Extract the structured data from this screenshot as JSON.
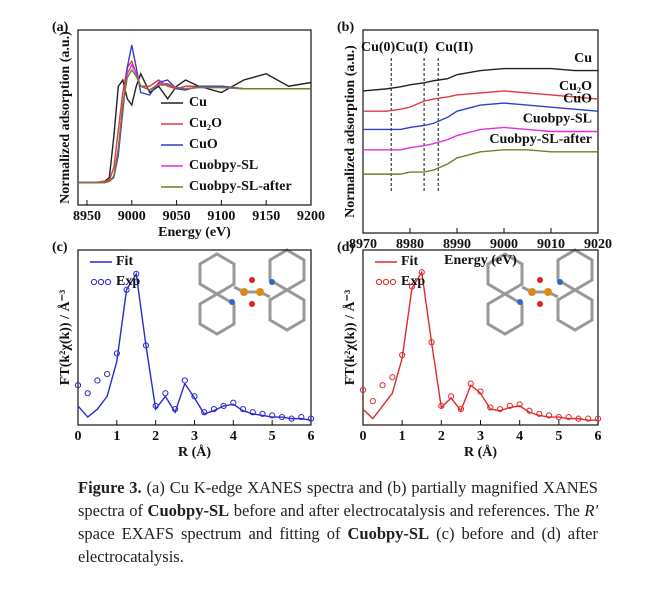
{
  "chart_data": [
    {
      "type": "line",
      "label": "(a)",
      "xlabel": "Energy (eV)",
      "ylabel": "Normalized adsorption (a.u.)",
      "x": [
        8940,
        8960,
        8970,
        8975,
        8980,
        8985,
        8990,
        8995,
        9000,
        9005,
        9010,
        9020,
        9030,
        9040,
        9050,
        9060,
        9075,
        9100,
        9125,
        9150,
        9175,
        9200
      ],
      "xlim": [
        8940,
        9200
      ],
      "xticks": [
        8950,
        9000,
        9050,
        9100,
        9150,
        9200
      ],
      "ylim": [
        0,
        1.4
      ],
      "legend": "lower-right",
      "series": [
        {
          "name": "Cu",
          "color": "#222222",
          "values": [
            0.18,
            0.18,
            0.19,
            0.22,
            0.55,
            0.95,
            1.0,
            0.85,
            0.8,
            0.95,
            1.05,
            0.9,
            0.95,
            0.85,
            0.95,
            1.0,
            0.95,
            0.9,
            1.0,
            1.05,
            0.95,
            0.98
          ]
        },
        {
          "name": "Cu₂O",
          "color": "#e0393e",
          "values": [
            0.18,
            0.18,
            0.19,
            0.2,
            0.3,
            0.6,
            0.9,
            1.1,
            1.15,
            1.05,
            0.95,
            0.95,
            1.0,
            0.95,
            0.93,
            0.95,
            0.95,
            0.95,
            0.93,
            0.93,
            0.93,
            0.93
          ]
        },
        {
          "name": "CuO",
          "color": "#2f3fc9",
          "values": [
            0.18,
            0.18,
            0.18,
            0.19,
            0.22,
            0.4,
            0.75,
            1.1,
            1.28,
            1.1,
            0.9,
            0.88,
            0.98,
            1.0,
            0.93,
            0.92,
            0.95,
            0.95,
            0.93,
            0.93,
            0.93,
            0.93
          ]
        },
        {
          "name": "Cuobpy-SL",
          "color": "#e22fe0",
          "values": [
            0.18,
            0.18,
            0.18,
            0.19,
            0.23,
            0.45,
            0.8,
            1.05,
            1.12,
            1.05,
            0.95,
            0.92,
            0.97,
            0.97,
            0.94,
            0.93,
            0.94,
            0.94,
            0.93,
            0.93,
            0.93,
            0.93
          ]
        },
        {
          "name": "Cuobpy-SL-after",
          "color": "#7a7a2a",
          "values": [
            0.18,
            0.18,
            0.18,
            0.19,
            0.23,
            0.45,
            0.8,
            1.02,
            1.08,
            1.03,
            0.95,
            0.92,
            0.96,
            0.96,
            0.94,
            0.93,
            0.94,
            0.94,
            0.93,
            0.93,
            0.93,
            0.93
          ]
        }
      ]
    },
    {
      "type": "line",
      "label": "(b)",
      "xlabel": "Energy (eV)",
      "ylabel": "Normalized adsorption (a.u.)",
      "x": [
        8970,
        8975,
        8978,
        8980,
        8983,
        8985,
        8988,
        8990,
        8995,
        9000,
        9005,
        9010,
        9015,
        9020
      ],
      "xlim": [
        8970,
        9020
      ],
      "xticks": [
        8970,
        8980,
        8990,
        9000,
        9010,
        9020
      ],
      "ylim": [
        0,
        1
      ],
      "legend": "inline",
      "annotations": [
        {
          "text": "Cu(0)",
          "x": 8976
        },
        {
          "text": "Cu(I)",
          "x": 8983
        },
        {
          "text": "Cu(II)",
          "x": 8986
        }
      ],
      "series": [
        {
          "name": "Cu",
          "color": "#222222",
          "values": [
            0.7,
            0.71,
            0.72,
            0.73,
            0.74,
            0.75,
            0.76,
            0.78,
            0.8,
            0.81,
            0.81,
            0.81,
            0.8,
            0.8
          ]
        },
        {
          "name": "Cu₂O",
          "color": "#e0393e",
          "values": [
            0.6,
            0.6,
            0.61,
            0.62,
            0.65,
            0.66,
            0.67,
            0.68,
            0.69,
            0.7,
            0.69,
            0.68,
            0.67,
            0.66
          ]
        },
        {
          "name": "CuO",
          "color": "#2f3fc9",
          "values": [
            0.51,
            0.51,
            0.51,
            0.52,
            0.53,
            0.54,
            0.57,
            0.6,
            0.63,
            0.64,
            0.63,
            0.62,
            0.61,
            0.6
          ]
        },
        {
          "name": "Cuobpy-SL",
          "color": "#e22fe0",
          "values": [
            0.41,
            0.41,
            0.41,
            0.42,
            0.43,
            0.44,
            0.46,
            0.48,
            0.51,
            0.52,
            0.51,
            0.5,
            0.5,
            0.5
          ]
        },
        {
          "name": "Cuobpy-SL-after",
          "color": "#7a7a2a",
          "values": [
            0.29,
            0.29,
            0.29,
            0.3,
            0.3,
            0.31,
            0.34,
            0.37,
            0.4,
            0.41,
            0.41,
            0.4,
            0.4,
            0.4
          ]
        }
      ]
    },
    {
      "type": "line",
      "label": "(c)",
      "xlabel": "R (Å)",
      "ylabel": "FT(k²χ(k)) / Å⁻³",
      "x": [
        0,
        0.25,
        0.5,
        0.75,
        1,
        1.25,
        1.5,
        1.75,
        2,
        2.25,
        2.5,
        2.75,
        3,
        3.25,
        3.5,
        3.75,
        4,
        4.25,
        4.5,
        4.75,
        5,
        5.25,
        5.5,
        5.75,
        6
      ],
      "xlim": [
        0,
        6
      ],
      "xticks": [
        0,
        1,
        2,
        3,
        4,
        5,
        6
      ],
      "ylim": [
        0,
        1.1
      ],
      "legend": "upper-left",
      "series": [
        {
          "name": "Fit",
          "color": "#2a2ad0",
          "marker": "line",
          "values": [
            0.12,
            0.05,
            0.1,
            0.18,
            0.4,
            0.85,
            0.95,
            0.5,
            0.1,
            0.18,
            0.08,
            0.26,
            0.17,
            0.07,
            0.09,
            0.12,
            0.13,
            0.09,
            0.07,
            0.06,
            0.05,
            0.05,
            0.04,
            0.04,
            0.03
          ]
        },
        {
          "name": "Exp",
          "color": "#2a2ad0",
          "marker": "circle",
          "values": [
            0.25,
            0.2,
            0.28,
            0.32,
            0.45,
            0.85,
            0.95,
            0.5,
            0.12,
            0.2,
            0.1,
            0.28,
            0.18,
            0.08,
            0.1,
            0.12,
            0.14,
            0.1,
            0.08,
            0.07,
            0.06,
            0.05,
            0.04,
            0.05,
            0.04
          ]
        }
      ]
    },
    {
      "type": "line",
      "label": "(d)",
      "xlabel": "R (Å)",
      "ylabel": "FT(k²χ(k)) / Å⁻³",
      "x": [
        0,
        0.25,
        0.5,
        0.75,
        1,
        1.25,
        1.5,
        1.75,
        2,
        2.25,
        2.5,
        2.75,
        3,
        3.25,
        3.5,
        3.75,
        4,
        4.25,
        4.5,
        4.75,
        5,
        5.25,
        5.5,
        5.75,
        6
      ],
      "xlim": [
        0,
        6
      ],
      "xticks": [
        0,
        1,
        2,
        3,
        4,
        5,
        6
      ],
      "ylim": [
        0,
        1.1
      ],
      "legend": "upper-left",
      "series": [
        {
          "name": "Fit",
          "color": "#e02a2a",
          "marker": "line",
          "values": [
            0.1,
            0.04,
            0.12,
            0.2,
            0.42,
            0.86,
            0.96,
            0.52,
            0.11,
            0.17,
            0.09,
            0.25,
            0.2,
            0.1,
            0.09,
            0.11,
            0.12,
            0.08,
            0.06,
            0.05,
            0.05,
            0.04,
            0.04,
            0.03,
            0.03
          ]
        },
        {
          "name": "Exp",
          "color": "#e02a2a",
          "marker": "circle",
          "values": [
            0.22,
            0.15,
            0.25,
            0.3,
            0.44,
            0.87,
            0.96,
            0.52,
            0.12,
            0.18,
            0.1,
            0.26,
            0.21,
            0.11,
            0.1,
            0.12,
            0.13,
            0.09,
            0.07,
            0.06,
            0.05,
            0.05,
            0.04,
            0.04,
            0.04
          ]
        }
      ]
    }
  ],
  "caption": [
    "Figure 3.",
    " (a) Cu K-edge XANES spectra and (b) partially magnified XANES spectra of ",
    "Cuobpy-SL",
    " before and after electrocatalysis and references. The ",
    "R'",
    " space EXAFS spectrum and fitting of ",
    "Cuobpy-SL",
    " (c) before and (d) after electrocatalysis."
  ]
}
